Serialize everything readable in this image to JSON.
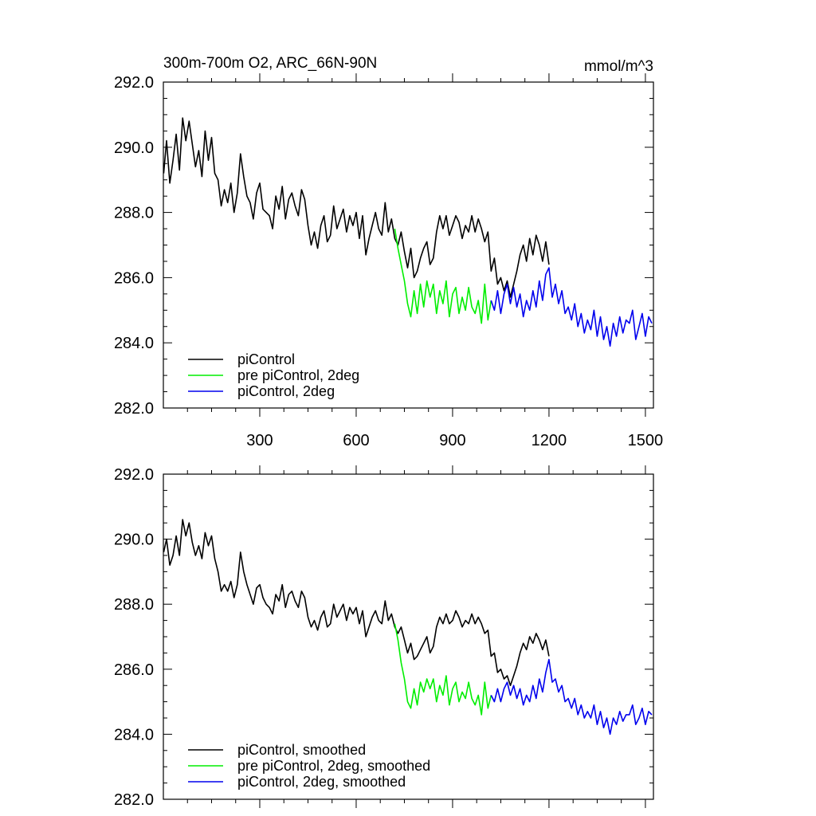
{
  "chart_data": [
    {
      "type": "line",
      "panel": "top",
      "title": "300m-700m O2, ARC_66N-90N",
      "units": "mmol/m^3",
      "xlabel": "",
      "ylabel": "",
      "xlim": [
        0,
        1525
      ],
      "ylim": [
        282.0,
        292.0
      ],
      "x_ticks": [
        300,
        600,
        900,
        1200,
        1500
      ],
      "x_tick_labels": [
        "300",
        "600",
        "900",
        "1200",
        "1500"
      ],
      "y_ticks": [
        282.0,
        284.0,
        286.0,
        288.0,
        290.0,
        292.0
      ],
      "y_tick_labels": [
        "282.0",
        "284.0",
        "286.0",
        "288.0",
        "290.0",
        "292.0"
      ],
      "legend": [
        "piControl",
        "pre piControl, 2deg",
        "piControl, 2deg"
      ],
      "legend_position": "bottom-left",
      "series": [
        {
          "name": "piControl",
          "color": "#000000",
          "x": [
            1,
            10,
            20,
            30,
            40,
            50,
            60,
            70,
            80,
            90,
            100,
            110,
            120,
            130,
            140,
            150,
            160,
            170,
            180,
            190,
            200,
            210,
            220,
            230,
            240,
            250,
            260,
            270,
            280,
            290,
            300,
            310,
            320,
            330,
            340,
            350,
            360,
            370,
            380,
            390,
            400,
            410,
            420,
            430,
            440,
            450,
            460,
            470,
            480,
            490,
            500,
            510,
            520,
            530,
            540,
            550,
            560,
            570,
            580,
            590,
            600,
            610,
            620,
            630,
            640,
            650,
            660,
            670,
            680,
            690,
            700,
            710,
            720,
            730,
            740,
            750,
            760,
            770,
            780,
            790,
            800,
            810,
            820,
            830,
            840,
            850,
            860,
            870,
            880,
            890,
            900,
            910,
            920,
            930,
            940,
            950,
            960,
            970,
            980,
            990,
            1000,
            1010,
            1020,
            1030,
            1040,
            1050,
            1060,
            1070,
            1080,
            1090,
            1100,
            1110,
            1120,
            1130,
            1140,
            1150,
            1160,
            1170,
            1180,
            1190,
            1200
          ],
          "values": [
            289.2,
            290.2,
            288.9,
            289.6,
            290.4,
            289.3,
            290.9,
            290.2,
            290.8,
            290.1,
            289.4,
            289.9,
            289.1,
            290.5,
            289.6,
            290.3,
            289.2,
            289.0,
            288.2,
            288.7,
            288.3,
            288.9,
            288.0,
            288.6,
            289.8,
            289.1,
            288.5,
            288.3,
            287.8,
            288.6,
            288.9,
            288.1,
            288.0,
            287.9,
            287.5,
            288.5,
            288.1,
            288.8,
            287.8,
            288.4,
            288.6,
            288.2,
            287.9,
            288.7,
            288.4,
            287.6,
            287.0,
            287.4,
            286.9,
            287.6,
            287.9,
            287.1,
            287.3,
            288.2,
            287.5,
            287.8,
            288.1,
            287.4,
            287.9,
            287.6,
            288.0,
            287.2,
            287.9,
            286.7,
            287.2,
            287.6,
            288.0,
            287.5,
            287.3,
            288.3,
            287.4,
            287.8,
            287.2,
            287.0,
            287.4,
            286.8,
            286.3,
            286.9,
            286.0,
            286.2,
            286.6,
            286.9,
            287.1,
            286.4,
            286.6,
            287.4,
            287.9,
            287.5,
            287.9,
            287.3,
            287.6,
            287.9,
            287.7,
            287.2,
            287.6,
            287.4,
            287.9,
            287.4,
            287.8,
            287.5,
            287.1,
            287.4,
            286.2,
            286.6,
            285.8,
            286.0,
            285.6,
            285.9,
            285.4,
            285.8,
            286.2,
            286.7,
            287.0,
            286.5,
            287.2,
            286.7,
            287.3,
            287.0,
            286.5,
            287.1,
            286.4
          ]
        },
        {
          "name": "pre piControl, 2deg",
          "color": "#00ee00",
          "x": [
            720,
            730,
            740,
            750,
            760,
            770,
            780,
            790,
            800,
            810,
            820,
            830,
            840,
            850,
            860,
            870,
            880,
            890,
            900,
            910,
            920,
            930,
            940,
            950,
            960,
            970,
            980,
            990,
            1000,
            1010,
            1020
          ],
          "values": [
            287.5,
            286.9,
            286.4,
            285.9,
            285.2,
            284.8,
            285.6,
            284.9,
            285.8,
            285.1,
            285.9,
            285.4,
            285.8,
            284.9,
            285.6,
            285.2,
            285.9,
            284.8,
            285.5,
            285.7,
            284.9,
            285.4,
            285.0,
            285.7,
            285.1,
            284.9,
            285.3,
            284.6,
            285.8,
            284.7,
            285.3
          ]
        },
        {
          "name": "piControl, 2deg",
          "color": "#0000ee",
          "x": [
            1020,
            1030,
            1040,
            1050,
            1060,
            1070,
            1080,
            1090,
            1100,
            1110,
            1120,
            1130,
            1140,
            1150,
            1160,
            1170,
            1180,
            1190,
            1200,
            1210,
            1220,
            1230,
            1240,
            1250,
            1260,
            1270,
            1280,
            1290,
            1300,
            1310,
            1320,
            1330,
            1340,
            1350,
            1360,
            1370,
            1380,
            1390,
            1400,
            1410,
            1420,
            1430,
            1440,
            1450,
            1460,
            1470,
            1480,
            1490,
            1500,
            1510,
            1520
          ],
          "values": [
            285.3,
            285.0,
            285.6,
            284.9,
            285.5,
            285.8,
            285.2,
            285.7,
            285.1,
            285.5,
            284.8,
            285.3,
            285.0,
            285.6,
            285.1,
            285.9,
            285.3,
            286.1,
            286.3,
            285.4,
            285.8,
            285.2,
            285.6,
            284.9,
            285.1,
            284.7,
            285.2,
            284.5,
            284.9,
            284.3,
            284.7,
            284.4,
            285.0,
            284.2,
            284.8,
            284.1,
            284.5,
            283.9,
            284.6,
            284.2,
            284.8,
            284.3,
            284.7,
            284.6,
            285.0,
            284.1,
            284.5,
            284.9,
            284.2,
            284.8,
            284.6
          ]
        }
      ]
    },
    {
      "type": "line",
      "panel": "bottom",
      "title": "",
      "xlabel": "",
      "ylabel": "",
      "xlim": [
        0,
        1525
      ],
      "ylim": [
        282.0,
        292.0
      ],
      "x_ticks": [
        300,
        600,
        900,
        1200,
        1500
      ],
      "y_ticks": [
        282.0,
        284.0,
        286.0,
        288.0,
        290.0,
        292.0
      ],
      "y_tick_labels": [
        "282.0",
        "284.0",
        "286.0",
        "288.0",
        "290.0",
        "292.0"
      ],
      "legend": [
        "piControl, smoothed",
        "pre piControl, 2deg, smoothed",
        "piControl, 2deg, smoothed"
      ],
      "legend_position": "bottom-left",
      "series": [
        {
          "name": "piControl, smoothed",
          "color": "#000000",
          "x": [
            1,
            10,
            20,
            30,
            40,
            50,
            60,
            70,
            80,
            90,
            100,
            110,
            120,
            130,
            140,
            150,
            160,
            170,
            180,
            190,
            200,
            210,
            220,
            230,
            240,
            250,
            260,
            270,
            280,
            290,
            300,
            310,
            320,
            330,
            340,
            350,
            360,
            370,
            380,
            390,
            400,
            410,
            420,
            430,
            440,
            450,
            460,
            470,
            480,
            490,
            500,
            510,
            520,
            530,
            540,
            550,
            560,
            570,
            580,
            590,
            600,
            610,
            620,
            630,
            640,
            650,
            660,
            670,
            680,
            690,
            700,
            710,
            720,
            730,
            740,
            750,
            760,
            770,
            780,
            790,
            800,
            810,
            820,
            830,
            840,
            850,
            860,
            870,
            880,
            890,
            900,
            910,
            920,
            930,
            940,
            950,
            960,
            970,
            980,
            990,
            1000,
            1010,
            1020,
            1030,
            1040,
            1050,
            1060,
            1070,
            1080,
            1090,
            1100,
            1110,
            1120,
            1130,
            1140,
            1150,
            1160,
            1170,
            1180,
            1190,
            1200
          ],
          "values": [
            289.6,
            290.0,
            289.2,
            289.5,
            290.1,
            289.5,
            290.6,
            290.1,
            290.5,
            289.9,
            289.5,
            289.8,
            289.4,
            290.2,
            289.8,
            290.1,
            289.4,
            289.0,
            288.4,
            288.6,
            288.4,
            288.7,
            288.2,
            288.6,
            289.6,
            289.0,
            288.6,
            288.3,
            288.0,
            288.5,
            288.6,
            288.2,
            288.0,
            287.9,
            287.7,
            288.3,
            288.1,
            288.6,
            287.9,
            288.3,
            288.4,
            288.1,
            287.9,
            288.4,
            288.2,
            287.6,
            287.3,
            287.5,
            287.2,
            287.6,
            287.8,
            287.3,
            287.4,
            288.0,
            287.6,
            287.8,
            288.0,
            287.5,
            287.9,
            287.7,
            287.9,
            287.4,
            287.8,
            287.0,
            287.3,
            287.6,
            287.8,
            287.5,
            287.4,
            288.1,
            287.5,
            287.7,
            287.3,
            287.1,
            287.3,
            286.9,
            286.5,
            286.8,
            286.3,
            286.4,
            286.6,
            286.8,
            287.0,
            286.5,
            286.7,
            287.3,
            287.6,
            287.4,
            287.7,
            287.4,
            287.5,
            287.8,
            287.6,
            287.3,
            287.5,
            287.4,
            287.7,
            287.4,
            287.6,
            287.4,
            287.1,
            287.2,
            286.4,
            286.5,
            285.9,
            286.0,
            285.7,
            285.8,
            285.5,
            285.8,
            286.1,
            286.5,
            286.8,
            286.6,
            287.0,
            286.8,
            287.1,
            286.9,
            286.6,
            286.9,
            286.4
          ]
        },
        {
          "name": "pre piControl, 2deg, smoothed",
          "color": "#00ee00",
          "x": [
            720,
            730,
            740,
            750,
            760,
            770,
            780,
            790,
            800,
            810,
            820,
            830,
            840,
            850,
            860,
            870,
            880,
            890,
            900,
            910,
            920,
            930,
            940,
            950,
            960,
            970,
            980,
            990,
            1000,
            1010,
            1020
          ],
          "values": [
            287.4,
            286.9,
            286.2,
            285.7,
            285.0,
            284.8,
            285.4,
            284.9,
            285.6,
            285.3,
            285.7,
            285.4,
            285.7,
            285.0,
            285.5,
            285.2,
            285.8,
            284.9,
            285.4,
            285.6,
            285.0,
            285.3,
            285.1,
            285.6,
            285.1,
            284.9,
            285.2,
            284.6,
            285.6,
            284.8,
            285.2
          ]
        },
        {
          "name": "piControl, 2deg, smoothed",
          "color": "#0000ee",
          "x": [
            1020,
            1030,
            1040,
            1050,
            1060,
            1070,
            1080,
            1090,
            1100,
            1110,
            1120,
            1130,
            1140,
            1150,
            1160,
            1170,
            1180,
            1190,
            1200,
            1210,
            1220,
            1230,
            1240,
            1250,
            1260,
            1270,
            1280,
            1290,
            1300,
            1310,
            1320,
            1330,
            1340,
            1350,
            1360,
            1370,
            1380,
            1390,
            1400,
            1410,
            1420,
            1430,
            1440,
            1450,
            1460,
            1470,
            1480,
            1490,
            1500,
            1510,
            1520
          ],
          "values": [
            285.2,
            285.0,
            285.4,
            285.0,
            285.4,
            285.6,
            285.2,
            285.5,
            285.1,
            285.4,
            284.9,
            285.2,
            285.0,
            285.5,
            285.1,
            285.7,
            285.3,
            285.9,
            286.3,
            285.6,
            285.7,
            285.3,
            285.5,
            285.0,
            285.1,
            284.8,
            285.1,
            284.6,
            284.9,
            284.5,
            284.7,
            284.5,
            284.9,
            284.3,
            284.7,
            284.2,
            284.5,
            284.0,
            284.5,
            284.3,
            284.7,
            284.4,
            284.6,
            284.6,
            284.9,
            284.3,
            284.5,
            284.8,
            284.3,
            284.7,
            284.6
          ]
        }
      ]
    }
  ]
}
